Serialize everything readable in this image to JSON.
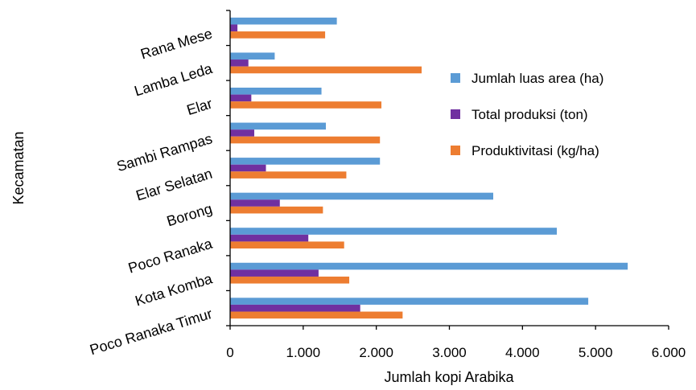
{
  "chart_data": {
    "type": "bar",
    "orientation": "horizontal",
    "xlabel": "Jumlah kopi Arabika",
    "ylabel": "Kecamatan",
    "xlim": [
      0,
      6000
    ],
    "xticks": [
      0,
      1000,
      2000,
      3000,
      4000,
      5000,
      6000
    ],
    "xtick_labels": [
      "0",
      "1.000",
      "2.000",
      "3.000",
      "4.000",
      "5.000",
      "6.000"
    ],
    "grid": false,
    "legend_position": "right",
    "categories": [
      "Rana Mese",
      "Lamba Leda",
      "Elar",
      "Sambi Rampas",
      "Elar Selatan",
      "Borong",
      "Poco Ranaka",
      "Kota Komba",
      "Poco Ranaka Timur"
    ],
    "series": [
      {
        "name": "Jumlah luas area (ha)",
        "color": "#5B9BD5",
        "values": [
          1460,
          610,
          1250,
          1310,
          2050,
          3600,
          4470,
          5440,
          4900
        ]
      },
      {
        "name": "Total produksi (ton)",
        "color": "#7030A0",
        "values": [
          100,
          250,
          290,
          330,
          490,
          680,
          1070,
          1210,
          1780
        ]
      },
      {
        "name": "Produktivitasi (kg/ha)",
        "color": "#ED7D31",
        "values": [
          1300,
          2620,
          2070,
          2050,
          1590,
          1270,
          1560,
          1630,
          2360
        ]
      }
    ]
  }
}
